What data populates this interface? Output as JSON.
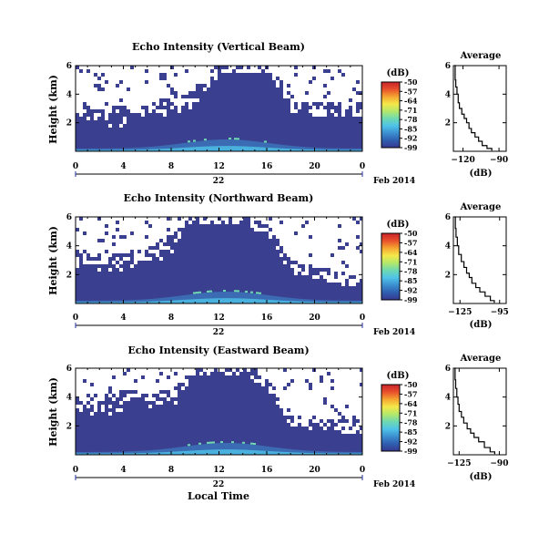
{
  "colors": {
    "background_echo": "#3a3f8f",
    "no_data": "#ffffff",
    "colorbar": [
      "#35388f",
      "#2f5fb0",
      "#3c8fd0",
      "#4fc3e8",
      "#6fd9b0",
      "#b5e86a",
      "#f5e84a",
      "#f5a531",
      "#e8502c",
      "#c8232c"
    ]
  },
  "chart_data": [
    {
      "type": "heatmap",
      "title": "Echo Intensity (Vertical Beam)",
      "ylabel": "Height (km)",
      "xticks": [
        "0",
        "4",
        "8",
        "12",
        "16",
        "20",
        "0"
      ],
      "yticks": [
        "6",
        "4",
        "2"
      ],
      "xlim": [
        0,
        24
      ],
      "ylim": [
        0,
        6
      ],
      "date_day": "22",
      "date_month_year": "Feb 2014",
      "colorbar": {
        "label": "(dB)",
        "ticks": [
          "-50",
          "-57",
          "-64",
          "-71",
          "-78",
          "-85",
          "-92",
          "-99"
        ],
        "range": [
          -99,
          -50
        ]
      },
      "cloud_profile": [
        [
          0,
          2.9
        ],
        [
          2,
          2.6
        ],
        [
          4,
          2.8
        ],
        [
          6,
          3.1
        ],
        [
          8,
          3.4
        ],
        [
          10,
          3.9
        ],
        [
          12,
          6.0
        ],
        [
          14,
          6.0
        ],
        [
          16,
          6.0
        ],
        [
          18,
          3.2
        ],
        [
          20,
          3.0
        ],
        [
          22,
          2.9
        ],
        [
          24,
          3.0
        ]
      ],
      "average": {
        "title": "Average",
        "xlabel": "(dB)",
        "xticks": [
          "-120",
          "-90"
        ],
        "xlim": [
          -128,
          -84
        ],
        "yticks": [
          "6",
          "4",
          "2"
        ],
        "ylim": [
          0,
          6
        ],
        "x": [
          -127,
          -126.5,
          -126,
          -125,
          -124,
          -123,
          -121,
          -119,
          -117,
          -115,
          -113,
          -110,
          -107,
          -104,
          -100,
          -96
        ],
        "y": [
          6.0,
          5.0,
          4.5,
          4.0,
          3.4,
          3.0,
          2.6,
          2.3,
          2.0,
          1.6,
          1.3,
          1.0,
          0.7,
          0.4,
          0.2,
          0.05
        ]
      }
    },
    {
      "type": "heatmap",
      "title": "Echo Intensity (Northward Beam)",
      "ylabel": "Height (km)",
      "xticks": [
        "0",
        "4",
        "8",
        "12",
        "16",
        "20",
        "0"
      ],
      "yticks": [
        "6",
        "4",
        "2"
      ],
      "xlim": [
        0,
        24
      ],
      "ylim": [
        0,
        6
      ],
      "date_day": "22",
      "date_month_year": "Feb 2014",
      "colorbar": {
        "label": "(dB)",
        "ticks": [
          "-50",
          "-57",
          "-64",
          "-71",
          "-78",
          "-85",
          "-92",
          "-99"
        ],
        "range": [
          -99,
          -50
        ]
      },
      "cloud_profile": [
        [
          0,
          3.3
        ],
        [
          2,
          3.1
        ],
        [
          4,
          3.2
        ],
        [
          6,
          3.5
        ],
        [
          8,
          4.5
        ],
        [
          10,
          6.0
        ],
        [
          12,
          6.0
        ],
        [
          14,
          6.0
        ],
        [
          16,
          5.0
        ],
        [
          18,
          2.5
        ],
        [
          20,
          2.3
        ],
        [
          22,
          1.8
        ],
        [
          24,
          1.6
        ]
      ],
      "average": {
        "title": "Average",
        "xlabel": "(dB)",
        "xticks": [
          "-125",
          "-95"
        ],
        "xlim": [
          -130,
          -90
        ],
        "yticks": [
          "6",
          "4",
          "2"
        ],
        "ylim": [
          0,
          6
        ],
        "x": [
          -129,
          -128.5,
          -128,
          -127,
          -126,
          -124,
          -122,
          -120,
          -118,
          -116,
          -113,
          -110,
          -106,
          -102,
          -99
        ],
        "y": [
          6.0,
          5.2,
          4.6,
          4.0,
          3.4,
          2.9,
          2.5,
          2.1,
          1.8,
          1.4,
          1.1,
          0.8,
          0.5,
          0.2,
          0.05
        ]
      }
    },
    {
      "type": "heatmap",
      "title": "Echo Intensity (Eastward Beam)",
      "ylabel": "Height (km)",
      "xlabel": "Local Time",
      "xticks": [
        "0",
        "4",
        "8",
        "12",
        "16",
        "20",
        "0"
      ],
      "yticks": [
        "6",
        "4",
        "2"
      ],
      "xlim": [
        0,
        24
      ],
      "ylim": [
        0,
        6
      ],
      "date_day": "22",
      "date_month_year": "Feb 2014",
      "colorbar": {
        "label": "(dB)",
        "ticks": [
          "-50",
          "-57",
          "-64",
          "-71",
          "-78",
          "-85",
          "-92",
          "-99"
        ],
        "range": [
          -99,
          -50
        ]
      },
      "cloud_profile": [
        [
          0,
          3.6
        ],
        [
          2,
          3.4
        ],
        [
          4,
          4.2
        ],
        [
          6,
          3.9
        ],
        [
          8,
          4.2
        ],
        [
          10,
          6.0
        ],
        [
          12,
          6.0
        ],
        [
          14,
          6.0
        ],
        [
          16,
          5.0
        ],
        [
          18,
          2.4
        ],
        [
          20,
          2.2
        ],
        [
          22,
          2.0
        ],
        [
          24,
          1.9
        ]
      ],
      "average": {
        "title": "Average",
        "xlabel": "(dB)",
        "xticks": [
          "-125",
          "-90"
        ],
        "xlim": [
          -130,
          -84
        ],
        "yticks": [
          "6",
          "4",
          "2"
        ],
        "ylim": [
          0,
          6
        ],
        "x": [
          -129,
          -128.5,
          -128,
          -127,
          -126,
          -125,
          -123,
          -121,
          -118,
          -115,
          -112,
          -108,
          -103,
          -98,
          -94
        ],
        "y": [
          6.0,
          5.2,
          4.6,
          4.0,
          3.5,
          3.0,
          2.6,
          2.2,
          1.8,
          1.5,
          1.2,
          0.9,
          0.5,
          0.2,
          0.05
        ]
      }
    }
  ]
}
